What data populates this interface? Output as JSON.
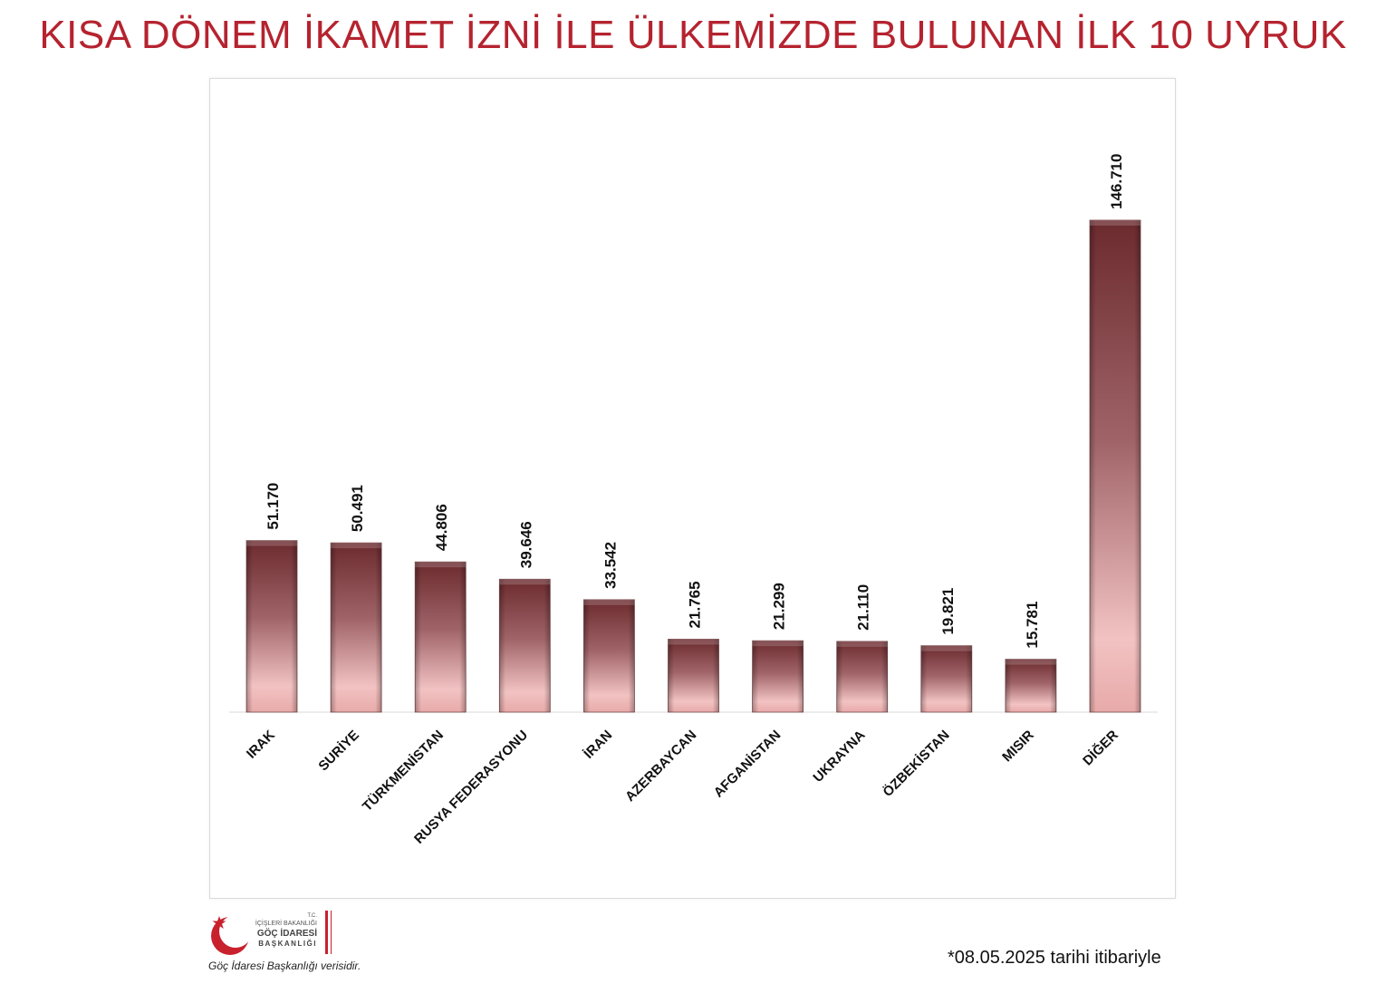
{
  "chart_data": {
    "type": "bar",
    "title": "KISA DÖNEM İKAMET İZNİ İLE ÜLKEMİZDE BULUNAN İLK 10 UYRUK",
    "categories": [
      "IRAK",
      "SURİYE",
      "TÜRKMENİSTAN",
      "RUSYA FEDERASYONU",
      "İRAN",
      "AZERBAYCAN",
      "AFGANİSTAN",
      "UKRAYNA",
      "ÖZBEKİSTAN",
      "MISIR",
      "DİĞER"
    ],
    "values": [
      51170,
      50491,
      44806,
      39646,
      33542,
      21765,
      21299,
      21110,
      19821,
      15781,
      146710
    ],
    "value_labels": [
      "51.170",
      "50.491",
      "44.806",
      "39.646",
      "33.542",
      "21.765",
      "21.299",
      "21.110",
      "19.821",
      "15.781",
      "146.710"
    ],
    "ylim": [
      0,
      146710
    ],
    "grid": false,
    "legend": "none",
    "colors": {
      "bar_top": "#6b2a2e",
      "bar_bottom": "#f4c4c4",
      "other_bar_bottom": "#e8a0a0",
      "title": "#b5232f"
    }
  },
  "logo": {
    "line1": "T.C.",
    "line2": "İÇİŞLERİ BAKANLIĞI",
    "line3": "GÖÇ İDARESİ",
    "line4": "BAŞKANLIĞI"
  },
  "footer": {
    "source": "Göç İdaresi Başkanlığı verisidir.",
    "date_note": "*08.05.2025 tarihi itibariyle"
  }
}
